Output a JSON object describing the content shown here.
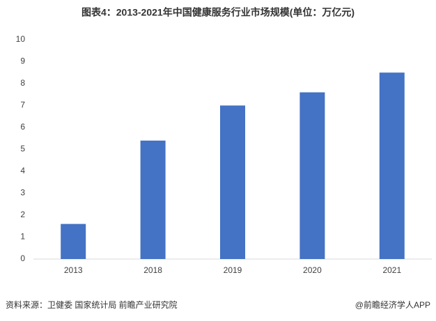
{
  "chart_data": {
    "type": "bar",
    "title": "图表4：2013-2021年中国健康服务行业市场规模(单位：万亿元)",
    "categories": [
      "2013",
      "2018",
      "2019",
      "2020",
      "2021"
    ],
    "values": [
      1.6,
      5.4,
      7.0,
      7.6,
      8.5
    ],
    "color": "#4472c4",
    "ylim": [
      0,
      10
    ],
    "yticks": [
      0,
      1,
      2,
      3,
      4,
      5,
      6,
      7,
      8,
      9,
      10
    ],
    "grid": false,
    "source": "资料来源：卫健委 国家统计局 前瞻产业研究院",
    "credit": "@前瞻经济学人APP"
  }
}
